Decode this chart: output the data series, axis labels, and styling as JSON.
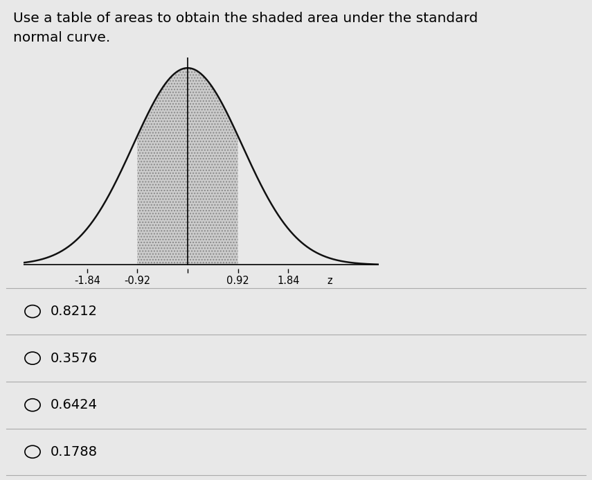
{
  "title_line1": "Use a table of areas to obtain the shaded area under the standard",
  "title_line2": "normal curve.",
  "shade_from": -0.92,
  "shade_to": 0.92,
  "x_ticks": [
    -1.84,
    -0.92,
    0,
    0.92,
    1.84
  ],
  "x_tick_labels": [
    "-1.84",
    "-0.92",
    "",
    "0.92",
    "1.84"
  ],
  "z_label": "z",
  "curve_color": "#111111",
  "shade_color": "#cccccc",
  "shade_hatch": "....",
  "background_color": "#e8e8e8",
  "options": [
    "0.8212",
    "0.3576",
    "0.6424",
    "0.1788"
  ],
  "title_fontsize": 14.5,
  "option_fontsize": 14,
  "xlim": [
    -3.0,
    3.5
  ],
  "ylim": [
    -0.008,
    0.42
  ],
  "mean_vline_x": 0.0
}
